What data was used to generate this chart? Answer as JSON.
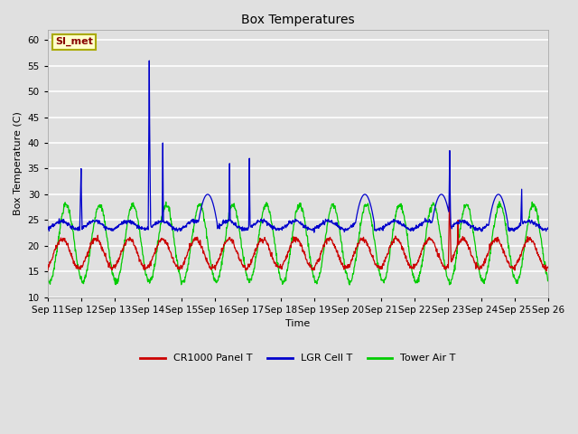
{
  "title": "Box Temperatures",
  "xlabel": "Time",
  "ylabel": "Box Temperature (C)",
  "ylim": [
    10,
    62
  ],
  "yticks": [
    10,
    15,
    20,
    25,
    30,
    35,
    40,
    45,
    50,
    55,
    60
  ],
  "x_labels": [
    "Sep 11",
    "Sep 12",
    "Sep 13",
    "Sep 14",
    "Sep 15",
    "Sep 16",
    "Sep 17",
    "Sep 18",
    "Sep 19",
    "Sep 20",
    "Sep 21",
    "Sep 22",
    "Sep 23",
    "Sep 24",
    "Sep 25",
    "Sep 26"
  ],
  "background_color": "#e0e0e0",
  "plot_bg_color": "#e0e0e0",
  "grid_color": "#ffffff",
  "legend_labels": [
    "CR1000 Panel T",
    "LGR Cell T",
    "Tower Air T"
  ],
  "legend_colors": [
    "#cc0000",
    "#0000cc",
    "#00cc00"
  ],
  "annotation_text": "SI_met",
  "annotation_color": "#880000",
  "annotation_bg": "#ffffcc",
  "annotation_border": "#aaaa00"
}
